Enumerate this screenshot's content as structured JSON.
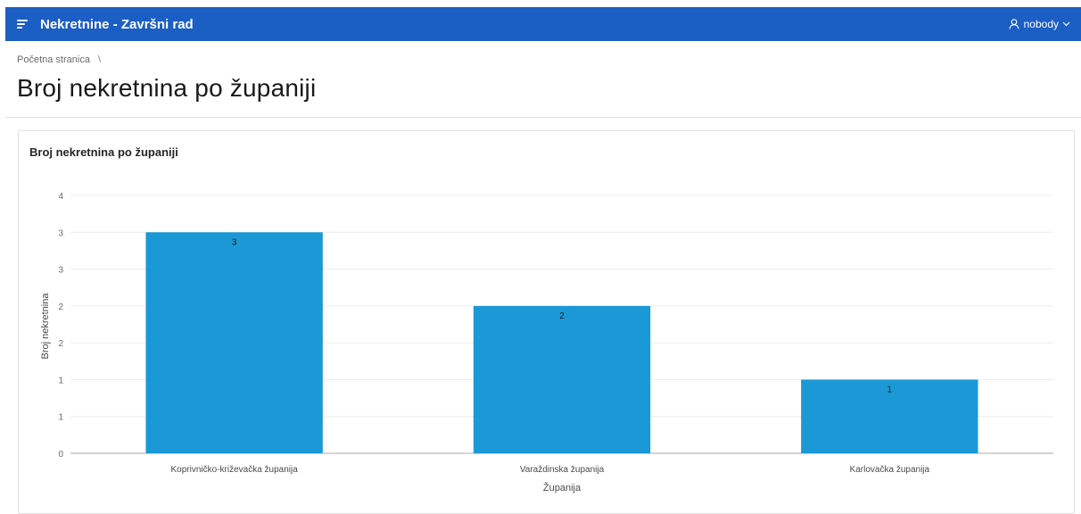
{
  "header": {
    "app_title": "Nekretnine - Završni rad",
    "user_name": "nobody"
  },
  "breadcrumb": {
    "home_label": "Početna stranica",
    "separator": "\\"
  },
  "page": {
    "title": "Broj nekretnina po županiji"
  },
  "chart_region": {
    "title": "Broj nekretnina po županiji"
  },
  "chart_data": {
    "type": "bar",
    "title": "Broj nekretnina po županiji",
    "categories": [
      "Koprivničko-križevačka županija",
      "Varaždinska županija",
      "Karlovačka županija"
    ],
    "values": [
      3,
      2,
      1
    ],
    "data_labels": [
      "3",
      "2",
      "1"
    ],
    "xlabel": "Županija",
    "ylabel": "Broj nekretnina",
    "ylim": [
      0,
      3.5
    ],
    "y_ticks": [
      0,
      0.5,
      1,
      1.5,
      2,
      2.5,
      3,
      3.5
    ],
    "y_tick_labels": [
      "0",
      "1",
      "1",
      "2",
      "2",
      "3",
      "3",
      "4"
    ],
    "bar_color": "#1b99d6",
    "grid": true,
    "legend": false
  },
  "colors": {
    "header_bg": "#1b5ec4",
    "bar": "#1b99d6"
  }
}
